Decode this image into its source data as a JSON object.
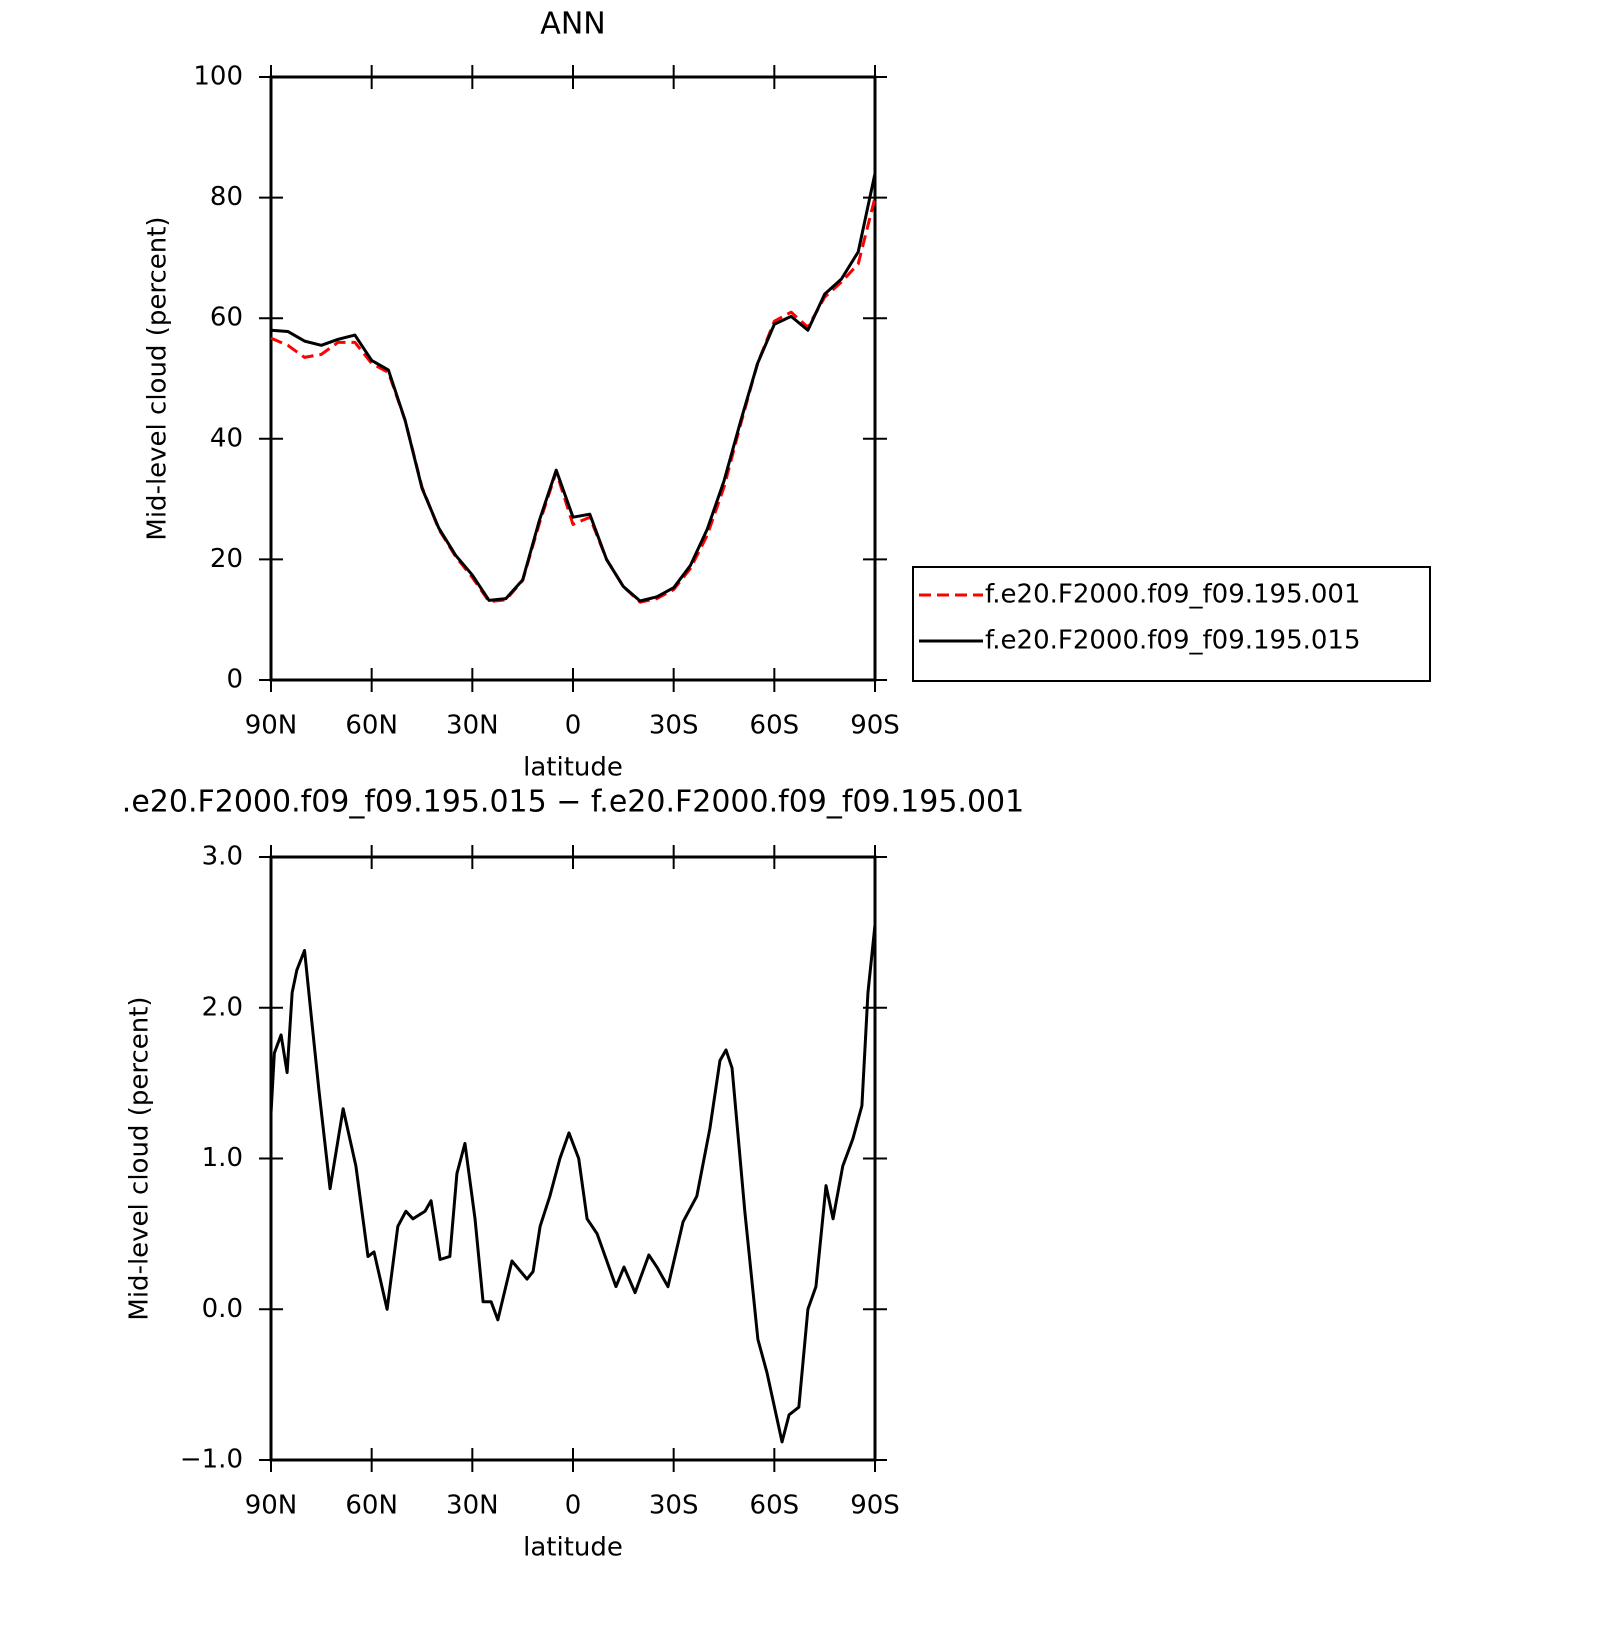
{
  "chart_data": [
    {
      "type": "line",
      "title": "ANN",
      "x_label": "latitude",
      "y_label": "Mid-level cloud (percent)",
      "xlim": [
        90,
        -90
      ],
      "ylim": [
        0,
        100
      ],
      "xticks": [
        {
          "value": 90,
          "label": "90N"
        },
        {
          "value": 60,
          "label": "60N"
        },
        {
          "value": 30,
          "label": "30N"
        },
        0,
        {
          "value": -30,
          "label": "30S"
        },
        {
          "value": -60,
          "label": "60S"
        },
        {
          "value": -90,
          "label": "90S"
        }
      ],
      "yticks": [
        0,
        20,
        40,
        60,
        80,
        100
      ],
      "legend": "right",
      "x": [
        90,
        85,
        80,
        75,
        70,
        65,
        60,
        55,
        50,
        45,
        40,
        35,
        30,
        25,
        20,
        15,
        10,
        5,
        0,
        -5,
        -10,
        -15,
        -20,
        -25,
        -30,
        -35,
        -40,
        -45,
        -50,
        -55,
        -60,
        -65,
        -70,
        -75,
        -80,
        -85,
        -90
      ],
      "series": [
        {
          "name": "f.e20.F2000.f09_f09.195.001",
          "color": "#ff0000",
          "dash": true,
          "values": [
            56.7,
            55.5,
            53.5,
            54,
            56,
            56,
            52.5,
            51,
            43,
            32,
            25,
            20.5,
            17,
            13,
            13.3,
            16.5,
            26,
            34.5,
            25.8,
            27,
            20,
            15.5,
            12.9,
            13.5,
            15,
            18.5,
            24,
            32,
            42.5,
            52.5,
            59.5,
            61,
            58.5,
            63.5,
            66,
            69,
            80
          ]
        },
        {
          "name": "f.e20.F2000.f09_f09.195.015",
          "color": "#000000",
          "dash": false,
          "values": [
            58,
            57.8,
            56.2,
            55.5,
            56.5,
            57.2,
            53,
            51.4,
            43,
            31.8,
            25.2,
            20.7,
            17.4,
            13.2,
            13.5,
            16.6,
            26.5,
            34.8,
            27,
            27.5,
            20,
            15.5,
            13.1,
            13.8,
            15.3,
            19,
            25,
            33,
            43,
            52.5,
            59,
            60.3,
            58,
            64,
            66.5,
            71,
            84
          ]
        }
      ]
    },
    {
      "type": "line",
      "title": ".e20.F2000.f09_f09.195.015 − f.e20.F2000.f09_f09.195.001",
      "x_label": "latitude",
      "y_label": "Mid-level cloud (percent)",
      "xlim": [
        90,
        -90
      ],
      "ylim": [
        -1,
        3
      ],
      "xticks": [
        {
          "value": 90,
          "label": "90N"
        },
        {
          "value": 60,
          "label": "60N"
        },
        {
          "value": 30,
          "label": "30N"
        },
        0,
        {
          "value": -30,
          "label": "30S"
        },
        {
          "value": -60,
          "label": "60S"
        },
        {
          "value": -90,
          "label": "90S"
        }
      ],
      "yticks": [
        {
          "value": -1,
          "label": "−1.0"
        },
        {
          "value": 0,
          "label": "0.0"
        },
        {
          "value": 1,
          "label": "1.0"
        },
        {
          "value": 2,
          "label": "2.0"
        },
        {
          "value": 3,
          "label": "3.0"
        }
      ],
      "x": [
        90,
        89,
        87,
        85.2,
        83.7,
        82.3,
        80,
        77.8,
        75.7,
        72.4,
        68.5,
        64.7,
        61.1,
        59.3,
        55.4,
        52.2,
        49.8,
        47.7,
        44.1,
        42.3,
        39.6,
        36.7,
        34.6,
        32.2,
        29.2,
        26.8,
        24.4,
        22.4,
        18.2,
        13.7,
        11.9,
        9.8,
        6.9,
        3.9,
        1.2,
        -1.7,
        -4.2,
        -7.2,
        -9.6,
        -12.8,
        -15.2,
        -18.5,
        -22.6,
        -25,
        -28.3,
        -32.8,
        -36.9,
        -40.8,
        -43.8,
        -45.6,
        -47.4,
        -51.2,
        -55.1,
        -57.8,
        -62.3,
        -64.4,
        -67.3,
        -70,
        -72.4,
        -75.4,
        -77.5,
        -80.4,
        -83.4,
        -86.1,
        -87.9,
        -90
      ],
      "series": [
        {
          "color": "#000000",
          "values": [
            1.3,
            1.7,
            1.82,
            1.57,
            2.1,
            2.25,
            2.38,
            1.9,
            1.45,
            0.8,
            1.33,
            0.95,
            0.35,
            0.38,
            0.0,
            0.55,
            0.65,
            0.6,
            0.65,
            0.72,
            0.33,
            0.35,
            0.9,
            1.1,
            0.6,
            0.05,
            0.05,
            -0.07,
            0.32,
            0.2,
            0.25,
            0.55,
            0.75,
            1.0,
            1.17,
            1.0,
            0.6,
            0.5,
            0.35,
            0.15,
            0.28,
            0.11,
            0.36,
            0.28,
            0.15,
            0.58,
            0.75,
            1.2,
            1.65,
            1.72,
            1.6,
            0.65,
            -0.2,
            -0.42,
            -0.88,
            -0.7,
            -0.65,
            0.0,
            0.15,
            0.82,
            0.6,
            0.95,
            1.13,
            1.35,
            2.1,
            2.55
          ]
        }
      ]
    }
  ]
}
